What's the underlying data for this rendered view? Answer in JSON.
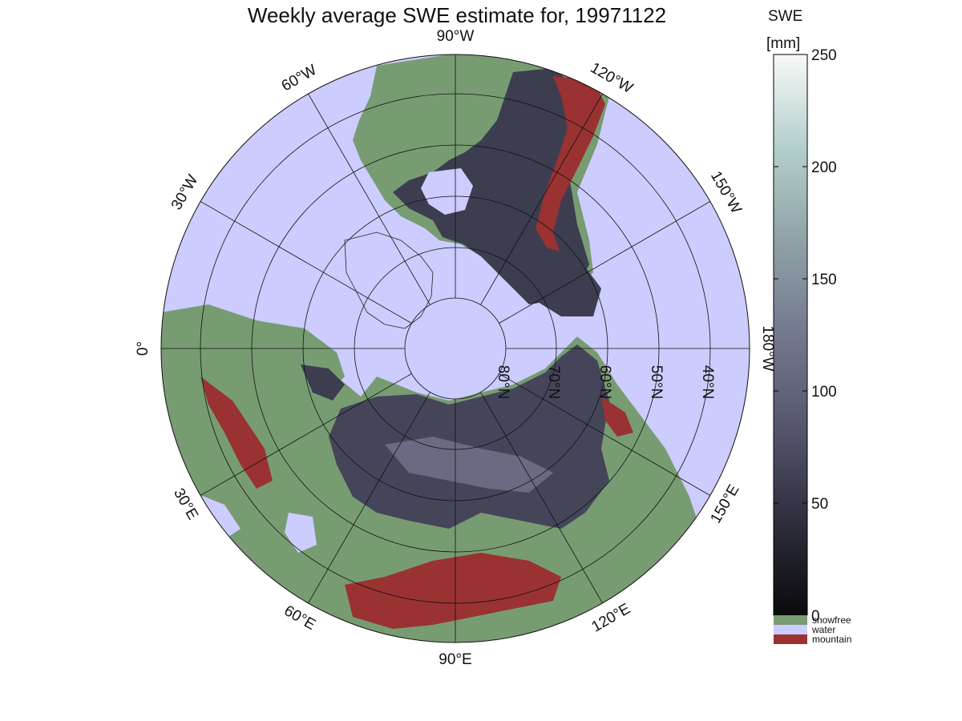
{
  "title": "Weekly average SWE estimate for, 19971122",
  "colorbar": {
    "label_line1": "SWE",
    "label_line2": "[mm]",
    "min": 0,
    "max": 250,
    "ticks": [
      "0",
      "50",
      "100",
      "150",
      "200",
      "250"
    ],
    "tick_values": [
      0,
      50,
      100,
      150,
      200,
      250
    ],
    "gradient": [
      "#0a0a0d",
      "#2e2e3c",
      "#55556f",
      "#74788f",
      "#8fa2a6",
      "#b3cfcc",
      "#f7f9f8"
    ],
    "categories": [
      {
        "label": "snowfree",
        "color": "#789c72"
      },
      {
        "label": "water",
        "color": "#ccccff"
      },
      {
        "label": "mountain",
        "color": "#9a3232"
      }
    ]
  },
  "map": {
    "projection": "north polar stereographic",
    "ocean_color": "#ccccff",
    "land_color": "#789c72",
    "snow_color": "#3a3a4a",
    "mountain_color": "#9a3232",
    "longitude_labels": [
      {
        "text": "90°W",
        "lon_deg": -90
      },
      {
        "text": "60°W",
        "lon_deg": -60
      },
      {
        "text": "120°W",
        "lon_deg": -120
      },
      {
        "text": "30°W",
        "lon_deg": -30
      },
      {
        "text": "150°W",
        "lon_deg": -150
      },
      {
        "text": "0°",
        "lon_deg": 0
      },
      {
        "text": "180°W",
        "lon_deg": 180
      },
      {
        "text": "30°E",
        "lon_deg": 30
      },
      {
        "text": "150°E",
        "lon_deg": 150
      },
      {
        "text": "60°E",
        "lon_deg": 60
      },
      {
        "text": "120°E",
        "lon_deg": 120
      },
      {
        "text": "90°E",
        "lon_deg": 90
      }
    ],
    "latitude_labels": [
      {
        "text": "80°N",
        "lat_deg": 80
      },
      {
        "text": "70°N",
        "lat_deg": 70
      },
      {
        "text": "60°N",
        "lat_deg": 60
      },
      {
        "text": "50°N",
        "lat_deg": 50
      },
      {
        "text": "40°N",
        "lat_deg": 40
      }
    ]
  }
}
